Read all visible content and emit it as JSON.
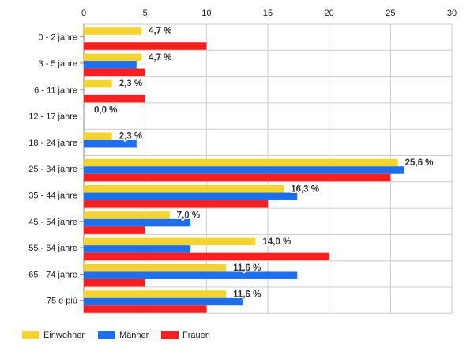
{
  "chart_data": {
    "type": "bar",
    "orientation": "horizontal",
    "categories": [
      "0 - 2 jahre",
      "3 - 5 jahre",
      "6 - 11 jahre",
      "12 - 17 jahre",
      "18 - 24 jahre",
      "25 - 34 jahre",
      "35 - 44 jahre",
      "45 - 54 jahre",
      "55 - 64 jahre",
      "65 - 74 jahre",
      "75 e più"
    ],
    "series": [
      {
        "name": "Einwohner",
        "color": "#f5d330",
        "values": [
          4.7,
          4.7,
          2.3,
          0.0,
          2.3,
          25.6,
          16.3,
          7.0,
          14.0,
          11.6,
          11.6
        ]
      },
      {
        "name": "Männer",
        "color": "#1e6ff0",
        "values": [
          0,
          4.3,
          0,
          0,
          4.3,
          26.1,
          17.4,
          8.7,
          8.7,
          17.4,
          13.0
        ]
      },
      {
        "name": "Frauen",
        "color": "#fa1e1e",
        "values": [
          10.0,
          5.0,
          5.0,
          0,
          0,
          25.0,
          15.0,
          5.0,
          20.0,
          5.0,
          10.0
        ]
      }
    ],
    "data_labels": [
      "4,7 %",
      "4,7 %",
      "2,3 %",
      "0,0 %",
      "2,3 %",
      "25,6 %",
      "16,3 %",
      "7,0 %",
      "14,0 %",
      "11,6 %",
      "11,6 %"
    ],
    "x_ticks": [
      "0",
      "5",
      "10",
      "15",
      "20",
      "25",
      "30"
    ],
    "xlim": [
      0,
      30
    ],
    "grid": true,
    "legend_position": "bottom-left"
  }
}
